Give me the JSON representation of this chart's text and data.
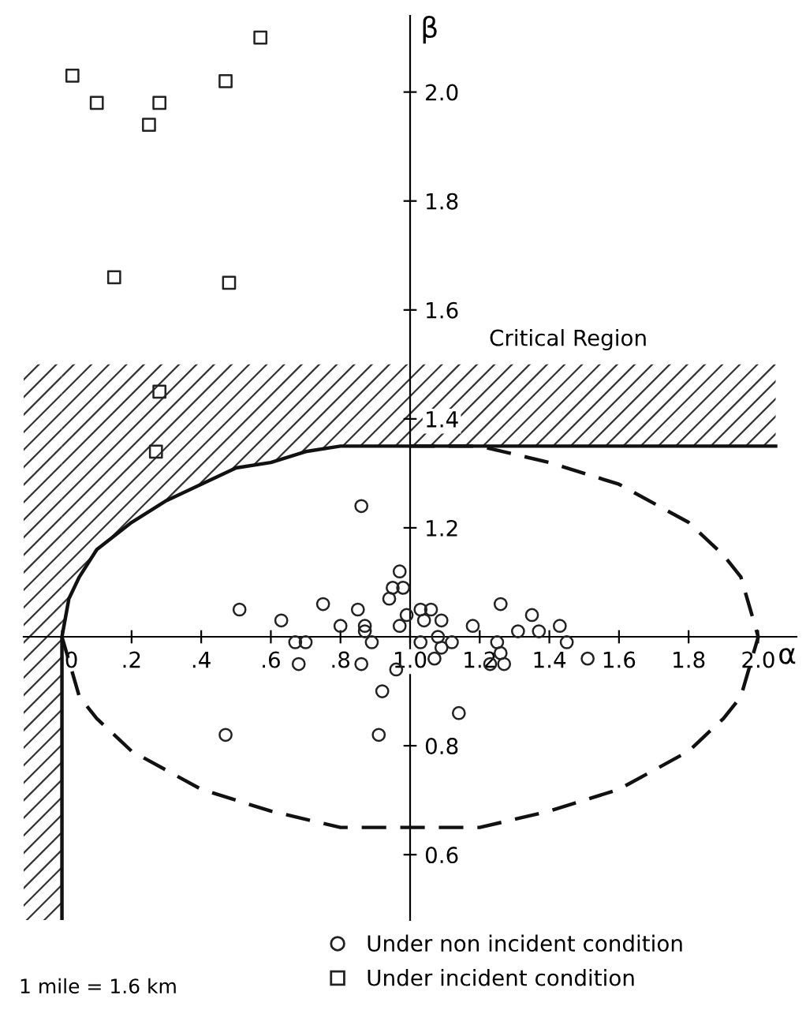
{
  "chart_data": {
    "type": "scatter",
    "xlabel": "α",
    "ylabel": "β",
    "xlim": [
      -0.11,
      2.11
    ],
    "ylim": [
      0.48,
      2.14
    ],
    "xticks": [
      {
        "value": 0,
        "label": "0"
      },
      {
        "value": 0.2,
        "label": ".2"
      },
      {
        "value": 0.4,
        "label": ".4"
      },
      {
        "value": 0.6,
        "label": ".6"
      },
      {
        "value": 0.8,
        "label": ".8"
      },
      {
        "value": 1.0,
        "label": "1.0"
      },
      {
        "value": 1.2,
        "label": "1.2"
      },
      {
        "value": 1.4,
        "label": "1.4"
      },
      {
        "value": 1.6,
        "label": "1.6"
      },
      {
        "value": 1.8,
        "label": "1.8"
      },
      {
        "value": 2.0,
        "label": "2.0"
      }
    ],
    "yticks": [
      0.6,
      0.8,
      1.2,
      1.4,
      1.6,
      1.8,
      {
        "value": 2.0,
        "label": "2.0"
      }
    ],
    "bands": [
      {
        "axis": "x",
        "from": -0.11,
        "to": 0,
        "color": "#333333"
      }
    ],
    "grid": false,
    "legend": "bottom",
    "series": [
      {
        "type": "area",
        "color": "#333333",
        "x": [
          0,
          0,
          0.02,
          0.05,
          0.1,
          0.2,
          0.3,
          0.4,
          0.5,
          0.6,
          0.7,
          0.8,
          0.9,
          1.0,
          2.05
        ],
        "values": [
          1.5,
          1.5,
          1.5,
          1.5,
          1.5,
          1.5,
          1.5,
          1.5,
          1.5,
          1.5,
          1.5,
          1.5,
          1.5,
          1.5,
          1.5
        ]
      },
      {
        "type": "line",
        "color": "#111111",
        "line_style": "solid",
        "marker": "none",
        "x": [
          0,
          0,
          0.02,
          0.05,
          0.1,
          0.2,
          0.3,
          0.4,
          0.5,
          0.6,
          0.7,
          0.8,
          0.9,
          1.0,
          2.05
        ],
        "values": [
          0.48,
          1.0,
          1.07,
          1.11,
          1.16,
          1.21,
          1.25,
          1.28,
          1.31,
          1.32,
          1.34,
          1.35,
          1.35,
          1.35,
          1.35
        ]
      },
      {
        "type": "line",
        "color": "#111111",
        "line_style": "dashed",
        "marker": "none",
        "x": [
          1.0,
          1.2,
          1.4,
          1.6,
          1.8,
          1.9,
          1.95,
          2.0,
          1.95,
          1.9,
          1.8,
          1.6,
          1.4,
          1.2,
          1.0,
          0.8,
          0.6,
          0.4,
          0.2,
          0.1,
          0.05,
          0
        ],
        "values": [
          1.35,
          1.35,
          1.32,
          1.28,
          1.21,
          1.15,
          1.11,
          1.0,
          0.89,
          0.85,
          0.79,
          0.72,
          0.68,
          0.65,
          0.65,
          0.65,
          0.68,
          0.72,
          0.79,
          0.85,
          0.89,
          1.0
        ]
      },
      {
        "name": "Under non incident condition",
        "color": "#222222",
        "marker": "circle",
        "x": [
          0.51,
          0.63,
          0.67,
          0.7,
          0.68,
          0.75,
          0.8,
          0.85,
          0.87,
          0.87,
          0.89,
          0.86,
          0.86,
          0.94,
          0.95,
          0.97,
          0.98,
          0.97,
          0.99,
          0.96,
          0.92,
          0.91,
          0.47,
          1.03,
          1.06,
          1.04,
          1.09,
          1.03,
          1.08,
          1.12,
          1.07,
          1.09,
          1.14,
          1.18,
          1.26,
          1.25,
          1.26,
          1.23,
          1.27,
          1.31,
          1.35,
          1.37,
          1.43,
          1.45,
          1.51
        ],
        "values": [
          1.05,
          1.03,
          0.99,
          0.99,
          0.95,
          1.06,
          1.02,
          1.05,
          1.02,
          1.01,
          0.99,
          0.95,
          1.24,
          1.07,
          1.09,
          1.12,
          1.09,
          1.02,
          1.04,
          0.94,
          0.9,
          0.82,
          0.82,
          1.05,
          1.05,
          1.03,
          1.03,
          0.99,
          1.0,
          0.99,
          0.96,
          0.98,
          0.86,
          1.02,
          1.06,
          0.99,
          0.97,
          0.95,
          0.95,
          1.01,
          1.04,
          1.01,
          1.02,
          0.99,
          0.96
        ]
      },
      {
        "name": "Under incident condition",
        "color": "#222222",
        "marker": "square",
        "x": [
          0.03,
          0.1,
          0.28,
          0.25,
          0.47,
          0.57,
          0.15,
          0.48,
          0.28,
          0.27
        ],
        "values": [
          2.03,
          1.98,
          1.98,
          1.94,
          2.02,
          2.1,
          1.66,
          1.65,
          1.45,
          1.34
        ]
      }
    ],
    "annotations": [
      "Critical Region",
      "1 mile = 1.6 km"
    ]
  }
}
